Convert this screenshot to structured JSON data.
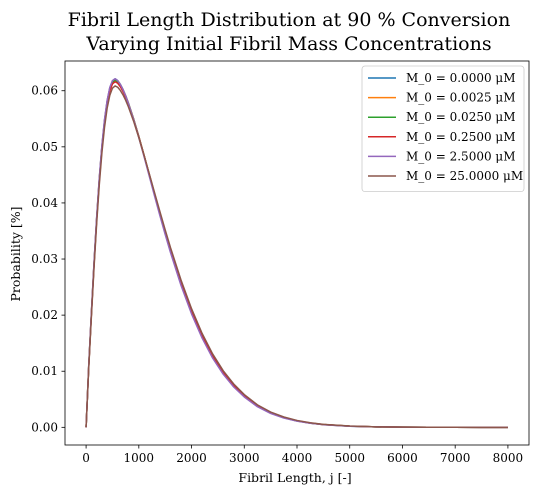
{
  "chart_data": {
    "type": "line",
    "title_lines": [
      "Fibril Length Distribution at 90 % Conversion",
      "Varying Initial Fibril Mass Concentrations"
    ],
    "xlabel": "Fibril Length, j [-]",
    "ylabel": "Probability [%]",
    "xlim": [
      -400,
      8400
    ],
    "ylim": [
      -0.00315,
      0.0653
    ],
    "xticks": [
      0,
      1000,
      2000,
      3000,
      4000,
      5000,
      6000,
      7000,
      8000
    ],
    "yticks": [
      0.0,
      0.01,
      0.02,
      0.03,
      0.04,
      0.05,
      0.06
    ],
    "xtick_labels": [
      "0",
      "1000",
      "2000",
      "3000",
      "4000",
      "5000",
      "6000",
      "7000",
      "8000"
    ],
    "ytick_labels": [
      "0.00",
      "0.01",
      "0.02",
      "0.03",
      "0.04",
      "0.05",
      "0.06"
    ],
    "legend_position": "top-right",
    "x": [
      0,
      50,
      100,
      150,
      200,
      250,
      300,
      350,
      400,
      450,
      500,
      550,
      600,
      650,
      700,
      750,
      800,
      900,
      1000,
      1100,
      1200,
      1300,
      1400,
      1500,
      1600,
      1800,
      2000,
      2200,
      2400,
      2600,
      2800,
      3000,
      3250,
      3500,
      3750,
      4000,
      4250,
      4500,
      5000,
      5500,
      6000,
      6500,
      7000,
      7500,
      8000
    ],
    "series": [
      {
        "name": "M_0 = 0.0000 μM",
        "color": "#1f77b4",
        "values": [
          0.0,
          0.01093,
          0.02025,
          0.02918,
          0.03724,
          0.04427,
          0.05013,
          0.05477,
          0.05822,
          0.06052,
          0.06176,
          0.06213,
          0.06181,
          0.06114,
          0.06024,
          0.05915,
          0.0579,
          0.05504,
          0.05185,
          0.04846,
          0.04496,
          0.04145,
          0.038,
          0.03465,
          0.03145,
          0.02557,
          0.02045,
          0.01611,
          0.01252,
          0.00962,
          0.00731,
          0.00551,
          0.00374,
          0.00253,
          0.0017,
          0.00113,
          0.00074,
          0.00048,
          0.0002,
          8e-05,
          3e-05,
          1e-05,
          5e-06,
          2e-06,
          0.0
        ]
      },
      {
        "name": "M_0 = 0.0025 μM",
        "color": "#ff7f0e",
        "values": [
          0.0,
          0.01091,
          0.02022,
          0.02914,
          0.03719,
          0.04421,
          0.05006,
          0.0547,
          0.05815,
          0.06045,
          0.06169,
          0.06206,
          0.06175,
          0.06108,
          0.06019,
          0.05911,
          0.05787,
          0.05502,
          0.05184,
          0.04846,
          0.04497,
          0.04147,
          0.03803,
          0.03469,
          0.03149,
          0.02562,
          0.0205,
          0.01616,
          0.01256,
          0.00966,
          0.00735,
          0.00554,
          0.00377,
          0.00255,
          0.00172,
          0.00114,
          0.00075,
          0.00049,
          0.00021,
          8e-05,
          3e-05,
          1e-05,
          5e-06,
          2e-06,
          0.0
        ]
      },
      {
        "name": "M_0 = 0.0250 μM",
        "color": "#2ca02c",
        "values": [
          0.0,
          0.01085,
          0.02012,
          0.02901,
          0.03705,
          0.04405,
          0.04988,
          0.0545,
          0.05794,
          0.06023,
          0.06148,
          0.06186,
          0.06157,
          0.06092,
          0.06005,
          0.05899,
          0.05777,
          0.05496,
          0.05181,
          0.04846,
          0.045,
          0.04152,
          0.0381,
          0.03477,
          0.03158,
          0.02572,
          0.0206,
          0.01625,
          0.01264,
          0.00973,
          0.00741,
          0.00559,
          0.00381,
          0.00258,
          0.00174,
          0.00116,
          0.00076,
          0.0005,
          0.00021,
          8e-05,
          3e-05,
          1e-05,
          5e-06,
          2e-06,
          0.0
        ]
      },
      {
        "name": "M_0 = 0.2500 μM",
        "color": "#d62728",
        "values": [
          0.0,
          0.01078,
          0.02,
          0.02886,
          0.03687,
          0.04384,
          0.04965,
          0.05425,
          0.05768,
          0.05996,
          0.06121,
          0.0616,
          0.06133,
          0.0607,
          0.05985,
          0.05882,
          0.05763,
          0.05487,
          0.05177,
          0.04846,
          0.04503,
          0.04158,
          0.03818,
          0.03487,
          0.03169,
          0.02584,
          0.02072,
          0.01636,
          0.01274,
          0.00981,
          0.00748,
          0.00565,
          0.00386,
          0.00262,
          0.00177,
          0.00118,
          0.00078,
          0.00051,
          0.00022,
          9e-05,
          3e-05,
          1e-05,
          5e-06,
          2e-06,
          0.0
        ]
      },
      {
        "name": "M_0 = 2.5000 μM",
        "color": "#9467bd",
        "values": [
          0.0,
          0.01105,
          0.02041,
          0.02936,
          0.03744,
          0.04446,
          0.0503,
          0.05492,
          0.05833,
          0.06059,
          0.0618,
          0.06214,
          0.0618,
          0.06111,
          0.06019,
          0.05908,
          0.0578,
          0.0549,
          0.05166,
          0.04823,
          0.04471,
          0.04119,
          0.03773,
          0.03438,
          0.03118,
          0.02531,
          0.02022,
          0.01591,
          0.01234,
          0.00947,
          0.00719,
          0.00541,
          0.00367,
          0.00247,
          0.00166,
          0.0011,
          0.00072,
          0.00047,
          0.0002,
          8e-05,
          3e-05,
          1e-05,
          4e-06,
          2e-06,
          0.0
        ]
      },
      {
        "name": "M_0 = 25.0000 μM",
        "color": "#8c564b",
        "values": [
          0.0,
          0.01056,
          0.01962,
          0.02836,
          0.03628,
          0.04318,
          0.04894,
          0.05352,
          0.05693,
          0.0592,
          0.06046,
          0.06086,
          0.06062,
          0.06005,
          0.05927,
          0.05831,
          0.05719,
          0.05459,
          0.05163,
          0.04845,
          0.04514,
          0.04178,
          0.03845,
          0.0352,
          0.03206,
          0.02626,
          0.02114,
          0.01675,
          0.01308,
          0.0101,
          0.00772,
          0.00584,
          0.004,
          0.00272,
          0.00184,
          0.00123,
          0.00081,
          0.00053,
          0.00023,
          9e-05,
          3e-05,
          1e-05,
          5e-06,
          2e-06,
          0.0
        ]
      }
    ]
  }
}
